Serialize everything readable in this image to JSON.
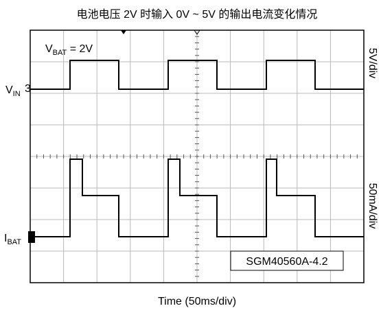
{
  "title": "电池电压 2V 时输入 0V ~ 5V 的输出电流变化情况",
  "x_label": "Time (50ms/div)",
  "vbat_label": {
    "main": "V",
    "sub": "BAT",
    "rest": " = 2V"
  },
  "vin_label": {
    "main": "V",
    "sub": "IN",
    "marker": "3"
  },
  "ibat_label": {
    "main": "I",
    "sub": "BAT"
  },
  "ch1_scale": "5V/div",
  "ch2_scale": "50mA/div",
  "part_number": "SGM40560A-4.2"
}
